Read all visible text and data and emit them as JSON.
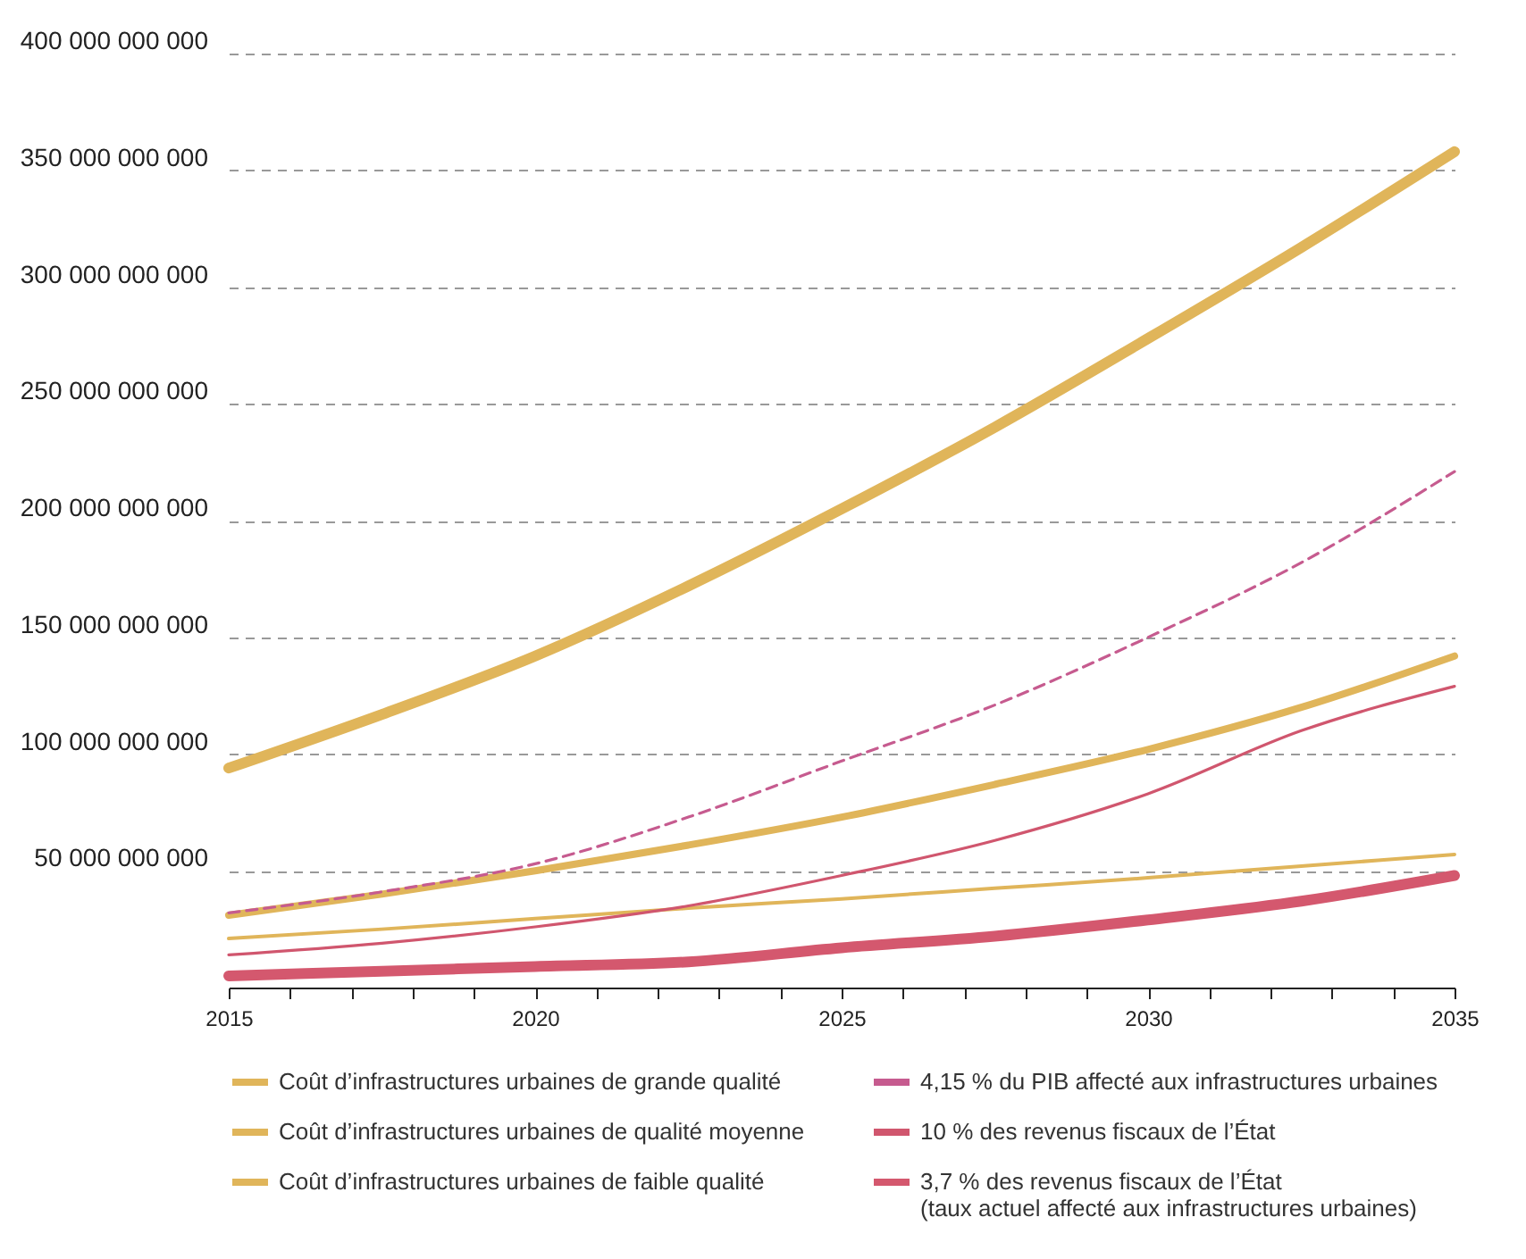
{
  "chart_data": {
    "type": "line",
    "legend": "bottom",
    "grid": "y",
    "x": [
      2015,
      2017.5,
      2020,
      2022.5,
      2025,
      2027.5,
      2030,
      2032.5,
      2035
    ],
    "xlim": [
      2015,
      2035
    ],
    "xticks": [
      2015,
      {
        "value": 2016,
        "label": null
      },
      {
        "value": 2017,
        "label": null
      },
      {
        "value": 2018,
        "label": null
      },
      {
        "value": 2019,
        "label": null
      },
      2020,
      {
        "value": 2021,
        "label": null
      },
      {
        "value": 2022,
        "label": null
      },
      {
        "value": 2023,
        "label": null
      },
      {
        "value": 2024,
        "label": null
      },
      2025,
      {
        "value": 2026,
        "label": null
      },
      {
        "value": 2027,
        "label": null
      },
      {
        "value": 2028,
        "label": null
      },
      {
        "value": 2029,
        "label": null
      },
      2030,
      {
        "value": 2031,
        "label": null
      },
      {
        "value": 2032,
        "label": null
      },
      {
        "value": 2033,
        "label": null
      },
      {
        "value": 2034,
        "label": null
      },
      2035
    ],
    "ylim": [
      0,
      400000000000
    ],
    "yticks": [
      {
        "value": 0,
        "label": null
      },
      {
        "value": 50000000000,
        "label": "50 000 000 000"
      },
      {
        "value": 100000000000,
        "label": "100 000 000 000"
      },
      {
        "value": 150000000000,
        "label": "150 000 000 000"
      },
      {
        "value": 200000000000,
        "label": "200 000 000 000"
      },
      {
        "value": 250000000000,
        "label": "250 000 000 000"
      },
      {
        "value": 300000000000,
        "label": "300 000 000 000"
      },
      {
        "value": 350000000000,
        "label": "350 000 000 000"
      },
      {
        "value": 400000000000,
        "label": "400 000 000 000"
      }
    ],
    "series": [
      {
        "name": "Coût d’infrastructures urbaines de grande qualité",
        "color": "#e0b55a",
        "values": [
          94000000000,
          117000000000,
          142000000000,
          172000000000,
          205000000000,
          240000000000,
          278000000000,
          317000000000,
          358000000000
        ]
      },
      {
        "name": "Coût d’infrastructures urbaines de qualité moyenne",
        "color": "#e0b55a",
        "values": [
          31000000000,
          40000000000,
          50000000000,
          61000000000,
          73000000000,
          87000000000,
          102000000000,
          120000000000,
          142000000000
        ]
      },
      {
        "name": "Coût d’infrastructures urbaines de faible qualité",
        "color": "#e0b55a",
        "values": [
          21000000000,
          25000000000,
          29500000000,
          34000000000,
          38000000000,
          42500000000,
          47000000000,
          52000000000,
          57000000000
        ]
      },
      {
        "name": "4,15 % du PIB affecté aux infrastructures urbaines",
        "color": "#c65b8f",
        "line_style": "dashed",
        "values": [
          32000000000,
          41000000000,
          53000000000,
          73000000000,
          97000000000,
          121000000000,
          150000000000,
          182000000000,
          221000000000
        ]
      },
      {
        "name": "10 % des revenus fiscaux de l’État",
        "color": "#d0566e",
        "values": [
          14000000000,
          19000000000,
          26000000000,
          35000000000,
          48000000000,
          63000000000,
          83000000000,
          110000000000,
          129000000000
        ]
      },
      {
        "name": "3,7 % des revenus fiscaux de l’État\n(taux actuel affecté aux infrastructures urbaines)",
        "color": "#d4586e",
        "values": [
          5000000000,
          7000000000,
          9000000000,
          11000000000,
          17000000000,
          22000000000,
          29000000000,
          37000000000,
          48000000000
        ]
      }
    ]
  }
}
